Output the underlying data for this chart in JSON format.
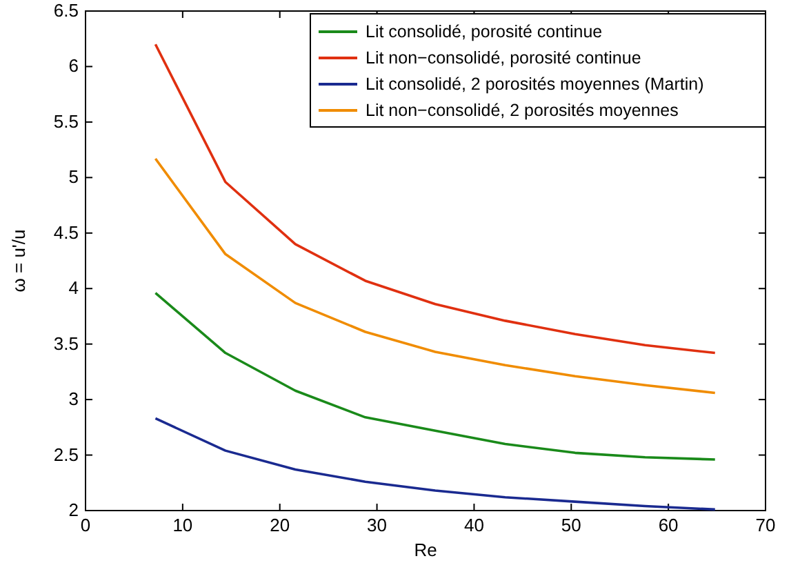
{
  "chart_data": {
    "type": "line",
    "xlabel": "Re",
    "ylabel": "ω = u'/u",
    "x": [
      7.2,
      14.4,
      21.6,
      28.8,
      36,
      43.2,
      50.4,
      57.6,
      64.8
    ],
    "xlim": [
      0,
      70
    ],
    "xticks": [
      0,
      10,
      20,
      30,
      40,
      50,
      60,
      70
    ],
    "ylim": [
      2,
      6.5
    ],
    "yticks": [
      2,
      2.5,
      3,
      3.5,
      4,
      4.5,
      5,
      5.5,
      6,
      6.5
    ],
    "grid": false,
    "legend": "top right",
    "marker": "none",
    "line_style": "solid",
    "series": [
      {
        "name": "Lit consolidé, porosité continue",
        "color": "#1a8a1a",
        "values": [
          3.96,
          3.42,
          3.08,
          2.84,
          2.72,
          2.6,
          2.52,
          2.48,
          2.46
        ]
      },
      {
        "name": "Lit non−consolidé, porosité continue",
        "color": "#e03010",
        "values": [
          6.2,
          4.96,
          4.4,
          4.07,
          3.86,
          3.71,
          3.59,
          3.49,
          3.42
        ]
      },
      {
        "name": "Lit consolidé, 2 porosités moyennes (Martin)",
        "color": "#1a2a90",
        "values": [
          2.83,
          2.54,
          2.37,
          2.26,
          2.18,
          2.12,
          2.08,
          2.04,
          2.01
        ]
      },
      {
        "name": "Lit non−consolidé, 2 porosités moyennes",
        "color": "#f08c00",
        "values": [
          5.17,
          4.31,
          3.87,
          3.61,
          3.43,
          3.31,
          3.21,
          3.13,
          3.06
        ]
      }
    ]
  }
}
